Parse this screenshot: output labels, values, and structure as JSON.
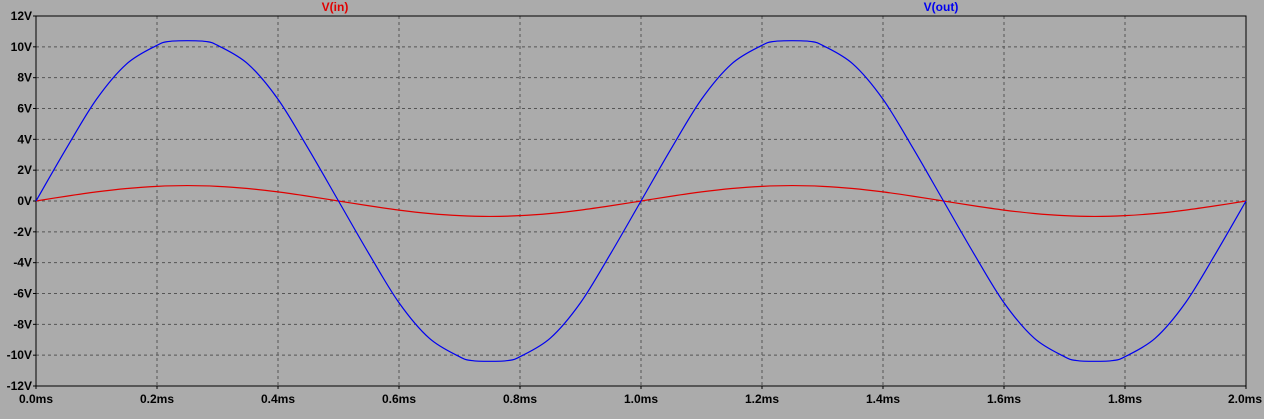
{
  "colors": {
    "background": "#ababab",
    "plot_frame": "#000000",
    "grid": "#555555",
    "text": "#000000"
  },
  "chart_data": {
    "type": "line",
    "x_unit": "ms",
    "y_unit": "V",
    "xlim": [
      0,
      2.0
    ],
    "ylim": [
      -12,
      12
    ],
    "x_ticks": [
      0.0,
      0.2,
      0.4,
      0.6,
      0.8,
      1.0,
      1.2,
      1.4,
      1.6,
      1.8,
      2.0
    ],
    "x_tick_labels": [
      "0.0ms",
      "0.2ms",
      "0.4ms",
      "0.6ms",
      "0.8ms",
      "1.0ms",
      "1.2ms",
      "1.4ms",
      "1.6ms",
      "1.8ms",
      "2.0ms"
    ],
    "y_ticks": [
      12,
      10,
      8,
      6,
      4,
      2,
      0,
      -2,
      -4,
      -6,
      -8,
      -10,
      -12
    ],
    "y_tick_labels": [
      "12V",
      "10V",
      "8V",
      "6V",
      "4V",
      "2V",
      "0V",
      "-2V",
      "-4V",
      "-6V",
      "-8V",
      "-10V",
      "-12V"
    ],
    "grid": true,
    "legend_placement": "top",
    "series": [
      {
        "name": "V(in)",
        "color": "#e00000",
        "x": [
          0.0,
          0.05,
          0.1,
          0.15,
          0.2,
          0.25,
          0.3,
          0.35,
          0.4,
          0.45,
          0.5,
          0.55,
          0.6,
          0.65,
          0.7,
          0.75,
          0.8,
          0.85,
          0.9,
          0.95,
          1.0,
          1.05,
          1.1,
          1.15,
          1.2,
          1.25,
          1.3,
          1.35,
          1.4,
          1.45,
          1.5,
          1.55,
          1.6,
          1.65,
          1.7,
          1.75,
          1.8,
          1.85,
          1.9,
          1.95,
          2.0
        ],
        "y": [
          0,
          0.31,
          0.59,
          0.81,
          0.95,
          1.0,
          0.95,
          0.81,
          0.59,
          0.31,
          0,
          -0.31,
          -0.59,
          -0.81,
          -0.95,
          -1.0,
          -0.95,
          -0.81,
          -0.59,
          -0.31,
          0,
          0.31,
          0.59,
          0.81,
          0.95,
          1.0,
          0.95,
          0.81,
          0.59,
          0.31,
          0,
          -0.31,
          -0.59,
          -0.81,
          -0.95,
          -1.0,
          -0.95,
          -0.81,
          -0.59,
          -0.31,
          0
        ]
      },
      {
        "name": "V(out)",
        "color": "#0000f0",
        "x": [
          0.0,
          0.05,
          0.1,
          0.15,
          0.2,
          0.22,
          0.25,
          0.28,
          0.3,
          0.35,
          0.4,
          0.45,
          0.5,
          0.55,
          0.6,
          0.65,
          0.7,
          0.72,
          0.75,
          0.78,
          0.8,
          0.85,
          0.9,
          0.95,
          1.0,
          1.05,
          1.1,
          1.15,
          1.2,
          1.22,
          1.25,
          1.28,
          1.3,
          1.35,
          1.4,
          1.45,
          1.5,
          1.55,
          1.6,
          1.65,
          1.7,
          1.72,
          1.75,
          1.78,
          1.8,
          1.85,
          1.9,
          1.95,
          2.0
        ],
        "y": [
          0,
          3.4,
          6.6,
          8.9,
          10.1,
          10.35,
          10.4,
          10.35,
          10.1,
          8.9,
          6.6,
          3.4,
          0,
          -3.4,
          -6.6,
          -8.9,
          -10.1,
          -10.35,
          -10.4,
          -10.35,
          -10.1,
          -8.9,
          -6.6,
          -3.4,
          0,
          3.4,
          6.6,
          8.9,
          10.1,
          10.35,
          10.4,
          10.35,
          10.1,
          8.9,
          6.6,
          3.4,
          0,
          -3.4,
          -6.6,
          -8.9,
          -10.1,
          -10.35,
          -10.4,
          -10.35,
          -10.1,
          -8.9,
          -6.6,
          -3.4,
          0
        ]
      }
    ]
  }
}
